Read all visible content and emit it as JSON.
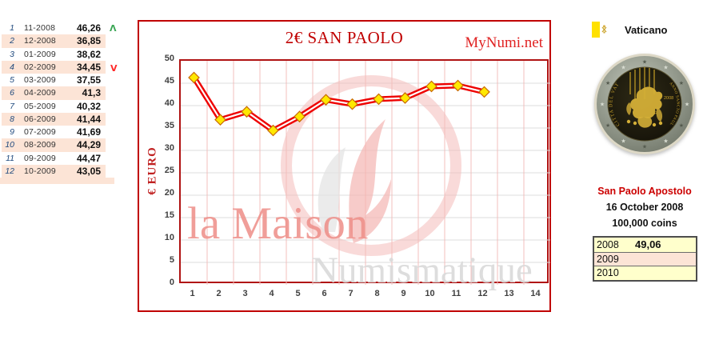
{
  "history_table": {
    "rows": [
      {
        "num": "1",
        "date": "11-2008",
        "value": "46,26"
      },
      {
        "num": "2",
        "date": "12-2008",
        "value": "36,85"
      },
      {
        "num": "3",
        "date": "01-2009",
        "value": "38,62"
      },
      {
        "num": "4",
        "date": "02-2009",
        "value": "34,45"
      },
      {
        "num": "5",
        "date": "03-2009",
        "value": "37,55"
      },
      {
        "num": "6",
        "date": "04-2009",
        "value": "41,3"
      },
      {
        "num": "7",
        "date": "05-2009",
        "value": "40,32"
      },
      {
        "num": "8",
        "date": "06-2009",
        "value": "41,44"
      },
      {
        "num": "9",
        "date": "07-2009",
        "value": "41,69"
      },
      {
        "num": "10",
        "date": "08-2009",
        "value": "44,29"
      },
      {
        "num": "11",
        "date": "09-2009",
        "value": "44,47"
      },
      {
        "num": "12",
        "date": "10-2009",
        "value": "43,05"
      }
    ],
    "max_marker": "Λ",
    "min_marker": "V"
  },
  "chart_data": {
    "type": "line",
    "title": "2€ SAN PAOLO",
    "brand": "MyNumi.net",
    "ylabel": "€ EURO",
    "xlabel": "",
    "categories": [
      "11-2008",
      "12-2008",
      "01-2009",
      "02-2009",
      "03-2009",
      "04-2009",
      "05-2009",
      "06-2009",
      "07-2009",
      "08-2009",
      "09-2009",
      "10-2009"
    ],
    "x": [
      1,
      2,
      3,
      4,
      5,
      6,
      7,
      8,
      9,
      10,
      11,
      12
    ],
    "values": [
      46.26,
      36.85,
      38.62,
      34.45,
      37.55,
      41.3,
      40.32,
      41.44,
      41.69,
      44.29,
      44.47,
      43.05
    ],
    "ylim": [
      0,
      50
    ],
    "ytick_step": 5,
    "yticks": [
      "0",
      "5",
      "10",
      "15",
      "20",
      "25",
      "30",
      "35",
      "40",
      "45",
      "50"
    ],
    "xticks": [
      "1",
      "2",
      "3",
      "4",
      "5",
      "6",
      "7",
      "8",
      "9",
      "10",
      "11",
      "12",
      "13",
      "14"
    ],
    "grid": true,
    "legend": "none",
    "watermark": {
      "line1": "la Maison",
      "line2": "Numismatique"
    },
    "colors": {
      "box_border": "#C00000",
      "plot_border": "#B01313",
      "grid_h": "#dcdcdc",
      "grid_v": "#f3bfbd",
      "series_line": "#EE0000",
      "series_core": "#ffffff",
      "marker_fill": "#FFE800",
      "marker_stroke": "#C96A00",
      "watermark_pink": "#f19removed",
      "accent_red": "#C00000"
    }
  },
  "side_panel": {
    "country": "Vaticano",
    "coin_name": "San Paolo Apostolo",
    "release_date": "16 October 2008",
    "mintage": "100,000 coins",
    "issue_table": [
      {
        "year": "2008",
        "value": "49,06"
      },
      {
        "year": "2009",
        "value": ""
      },
      {
        "year": "2010",
        "value": ""
      }
    ],
    "coin": {
      "inscription_left": "CITTA DEL VATICANO",
      "inscription_right": "ANNO SANCTO PAULO DICATO",
      "year_mark": "2008",
      "mint_mark": "R"
    }
  }
}
